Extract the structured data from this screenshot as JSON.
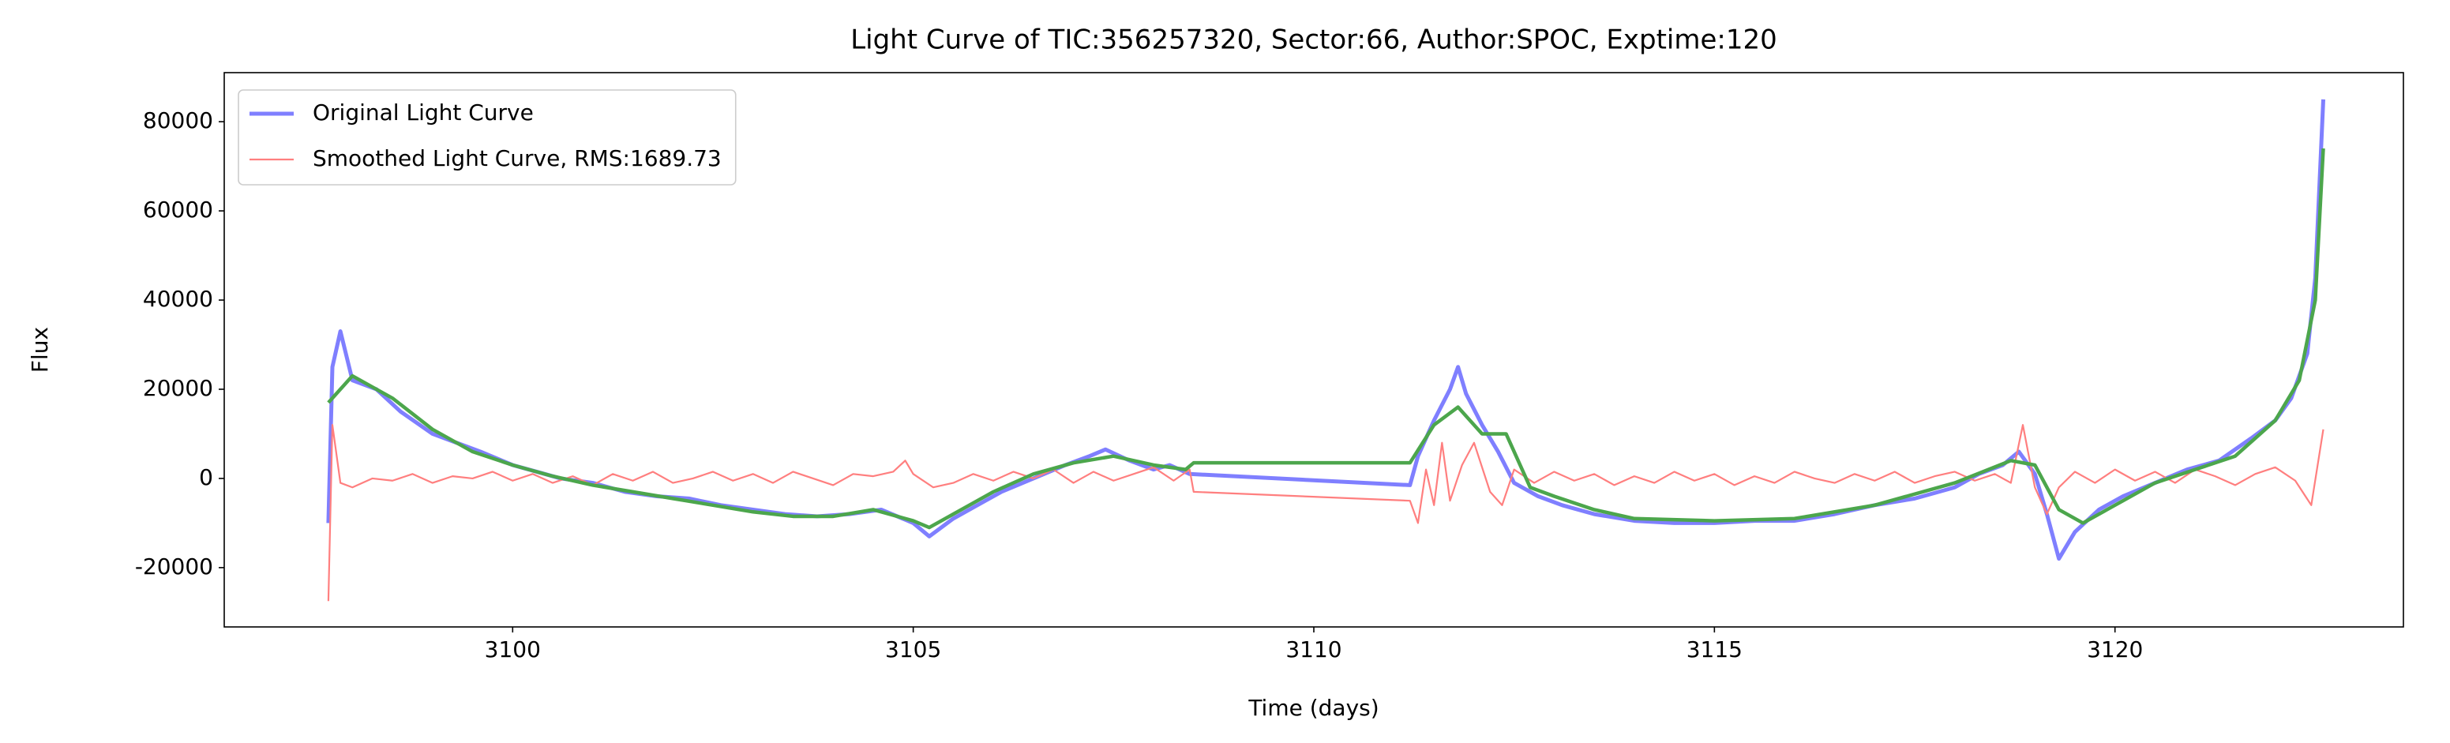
{
  "chart_data": {
    "type": "line",
    "title": "Light Curve of TIC:356257320, Sector:66, Author:SPOC, Exptime:120",
    "xlabel": "Time (days)",
    "ylabel": "Flux",
    "xlim": [
      3096.4,
      3123.6
    ],
    "ylim": [
      -33300,
      91000
    ],
    "xticks": [
      3100,
      3105,
      3110,
      3115,
      3120
    ],
    "yticks": [
      -20000,
      0,
      20000,
      40000,
      60000,
      80000
    ],
    "grid": false,
    "legend": "upper left",
    "series": [
      {
        "name": "Original Light Curve",
        "color": "#7f7fff",
        "x": [
          3097.7,
          3097.75,
          3097.85,
          3098,
          3098.3,
          3098.6,
          3099,
          3099.3,
          3099.6,
          3100,
          3100.3,
          3100.6,
          3101,
          3101.4,
          3101.8,
          3102.2,
          3102.6,
          3103,
          3103.4,
          3103.8,
          3104.2,
          3104.6,
          3105,
          3105.2,
          3105.5,
          3105.8,
          3106.1,
          3106.5,
          3106.9,
          3107.2,
          3107.4,
          3107.7,
          3108,
          3108.2,
          3108.45,
          3111.2,
          3111.3,
          3111.5,
          3111.7,
          3111.8,
          3111.9,
          3112.1,
          3112.3,
          3112.5,
          3112.8,
          3113.1,
          3113.5,
          3114,
          3114.5,
          3115,
          3115.5,
          3116,
          3116.5,
          3117,
          3117.5,
          3118,
          3118.3,
          3118.6,
          3118.8,
          3119,
          3119.15,
          3119.3,
          3119.5,
          3119.8,
          3120.1,
          3120.5,
          3120.9,
          3121.3,
          3121.7,
          3122,
          3122.2,
          3122.4,
          3122.5,
          3122.6
        ],
        "values": [
          -10000,
          25000,
          33000,
          22000,
          20000,
          15000,
          10000,
          8000,
          6000,
          3000,
          1500,
          0,
          -1000,
          -3000,
          -4000,
          -4500,
          -6000,
          -7000,
          -8000,
          -8500,
          -8000,
          -7000,
          -10000,
          -13000,
          -9000,
          -6000,
          -3000,
          0,
          3000,
          5000,
          6500,
          4000,
          2000,
          3000,
          1000,
          -1500,
          5000,
          13000,
          20000,
          25000,
          19000,
          12000,
          6000,
          -1000,
          -4000,
          -6000,
          -8000,
          -9500,
          -10000,
          -10000,
          -9500,
          -9500,
          -8000,
          -6000,
          -4500,
          -2000,
          1000,
          3000,
          6000,
          1000,
          -8000,
          -18000,
          -12000,
          -7000,
          -4000,
          -1000,
          2000,
          4000,
          9000,
          13000,
          18000,
          28000,
          45000,
          85000
        ]
      },
      {
        "name": "Smoothed Light Curve, RMS:1689.73",
        "color": "#ff7f7f",
        "x": [
          3097.7,
          3097.75,
          3097.85,
          3098,
          3098.25,
          3098.5,
          3098.75,
          3099,
          3099.25,
          3099.5,
          3099.75,
          3100,
          3100.25,
          3100.5,
          3100.75,
          3101,
          3101.25,
          3101.5,
          3101.75,
          3102,
          3102.25,
          3102.5,
          3102.75,
          3103,
          3103.25,
          3103.5,
          3103.75,
          3104,
          3104.25,
          3104.5,
          3104.75,
          3104.9,
          3105,
          3105.25,
          3105.5,
          3105.75,
          3106,
          3106.25,
          3106.5,
          3106.75,
          3107,
          3107.25,
          3107.5,
          3107.75,
          3108,
          3108.25,
          3108.45,
          3108.5,
          3111.2,
          3111.3,
          3111.4,
          3111.5,
          3111.6,
          3111.7,
          3111.85,
          3112,
          3112.2,
          3112.35,
          3112.5,
          3112.75,
          3113,
          3113.25,
          3113.5,
          3113.75,
          3114,
          3114.25,
          3114.5,
          3114.75,
          3115,
          3115.25,
          3115.5,
          3115.75,
          3116,
          3116.25,
          3116.5,
          3116.75,
          3117,
          3117.25,
          3117.5,
          3117.75,
          3118,
          3118.25,
          3118.5,
          3118.7,
          3118.85,
          3119,
          3119.15,
          3119.3,
          3119.5,
          3119.75,
          3120,
          3120.25,
          3120.5,
          3120.75,
          3121,
          3121.25,
          3121.5,
          3121.75,
          3122,
          3122.25,
          3122.45,
          3122.6
        ],
        "values": [
          -27500,
          12000,
          -1000,
          -2000,
          0,
          -500,
          1000,
          -1000,
          500,
          0,
          1500,
          -500,
          1000,
          -1000,
          500,
          -1500,
          1000,
          -500,
          1500,
          -1000,
          0,
          1500,
          -500,
          1000,
          -1000,
          1500,
          0,
          -1500,
          1000,
          500,
          1500,
          4000,
          1000,
          -2000,
          -1000,
          1000,
          -500,
          1500,
          0,
          2000,
          -1000,
          1500,
          -500,
          1000,
          2500,
          -500,
          2000,
          -3000,
          -5000,
          -10000,
          2000,
          -6000,
          8000,
          -5000,
          3000,
          8000,
          -3000,
          -6000,
          2000,
          -1000,
          1500,
          -500,
          1000,
          -1500,
          500,
          -1000,
          1500,
          -500,
          1000,
          -1500,
          500,
          -1000,
          1500,
          0,
          -1000,
          1000,
          -500,
          1500,
          -1000,
          500,
          1500,
          -500,
          1000,
          -1000,
          12000,
          -2000,
          -8000,
          -2000,
          1500,
          -1000,
          2000,
          -500,
          1500,
          -1000,
          2000,
          500,
          -1500,
          1000,
          2500,
          -500,
          -6000,
          11000
        ]
      },
      {
        "color": "#4ca64c",
        "x": [
          3097.7,
          3098,
          3098.5,
          3099,
          3099.5,
          3100,
          3100.5,
          3101,
          3101.5,
          3102,
          3102.5,
          3103,
          3103.5,
          3104,
          3104.5,
          3105,
          3105.2,
          3105.5,
          3106,
          3106.5,
          3107,
          3107.5,
          3108,
          3108.4,
          3108.5,
          3111.2,
          3111.5,
          3111.8,
          3112.1,
          3112.4,
          3112.7,
          3113,
          3113.5,
          3114,
          3115,
          3116,
          3117,
          3118,
          3118.7,
          3119,
          3119.3,
          3119.6,
          3120,
          3120.5,
          3121,
          3121.5,
          3122,
          3122.3,
          3122.5,
          3122.6
        ],
        "values": [
          17000,
          23000,
          18000,
          11000,
          6000,
          3000,
          500,
          -1500,
          -3000,
          -4500,
          -6000,
          -7500,
          -8500,
          -8500,
          -7000,
          -9500,
          -11000,
          -8000,
          -3000,
          1000,
          3500,
          5000,
          3000,
          2000,
          3500,
          3500,
          12000,
          16000,
          10000,
          10000,
          -2000,
          -4000,
          -7000,
          -9000,
          -9500,
          -9000,
          -6000,
          -1000,
          4000,
          3000,
          -7000,
          -10000,
          -6000,
          -1000,
          2000,
          5000,
          13000,
          22000,
          40000,
          74000
        ]
      }
    ]
  }
}
